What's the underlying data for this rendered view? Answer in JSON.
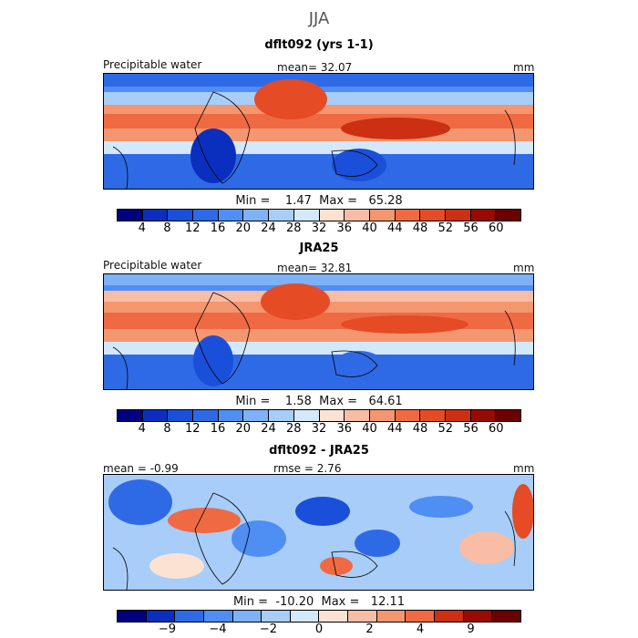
{
  "chart_data": [
    {
      "type": "heatmap",
      "season": "JJA",
      "title": "dflt092 (yrs 1-1)",
      "variable": "Precipitable water",
      "mean_label": "mean=  32.07",
      "units": "mm",
      "min_max": "Min =    1.47  Max =   65.28",
      "min": 1.47,
      "max": 65.28,
      "colorbar_ticks": [
        "4",
        "8",
        "12",
        "16",
        "20",
        "24",
        "28",
        "32",
        "36",
        "40",
        "44",
        "48",
        "52",
        "56",
        "60"
      ],
      "colors": [
        "#00007f",
        "#0a2fbf",
        "#1a4fd9",
        "#2f6ae6",
        "#4f8ef3",
        "#7fb1f7",
        "#a8cdf8",
        "#d4e8fb",
        "#fbe2d2",
        "#f8bda4",
        "#f4966f",
        "#ef6a43",
        "#e54b25",
        "#cc2f12",
        "#990a00",
        "#6b0000"
      ]
    },
    {
      "type": "heatmap",
      "title": "JRA25",
      "variable": "Precipitable water",
      "mean_label": "mean=  32.81",
      "units": "mm",
      "min_max": "Min =    1.58  Max =   64.61",
      "min": 1.58,
      "max": 64.61,
      "colorbar_ticks": [
        "4",
        "8",
        "12",
        "16",
        "20",
        "24",
        "28",
        "32",
        "36",
        "40",
        "44",
        "48",
        "52",
        "56",
        "60"
      ],
      "colors": [
        "#00007f",
        "#0a2fbf",
        "#1a4fd9",
        "#2f6ae6",
        "#4f8ef3",
        "#7fb1f7",
        "#a8cdf8",
        "#d4e8fb",
        "#fbe2d2",
        "#f8bda4",
        "#f4966f",
        "#ef6a43",
        "#e54b25",
        "#cc2f12",
        "#990a00",
        "#6b0000"
      ]
    },
    {
      "type": "heatmap",
      "title": "dflt092 - JRA25",
      "mean_label": "mean =   -0.99",
      "rmse_label": "rmse =    2.76",
      "units": "mm",
      "min_max": "Min =  -10.20  Max =   12.11",
      "min": -10.2,
      "max": 12.11,
      "colorbar_ticks": [
        "-9",
        "-4",
        "-2",
        "0",
        "2",
        "4",
        "9"
      ],
      "colors": [
        "#00007f",
        "#0a2fbf",
        "#2f6ae6",
        "#4f8ef3",
        "#7fb1f7",
        "#a8cdf8",
        "#d4e8fb",
        "#fbe2d2",
        "#f8bda4",
        "#f4966f",
        "#ef6a43",
        "#cc2f12",
        "#990a00",
        "#6b0000"
      ]
    }
  ]
}
